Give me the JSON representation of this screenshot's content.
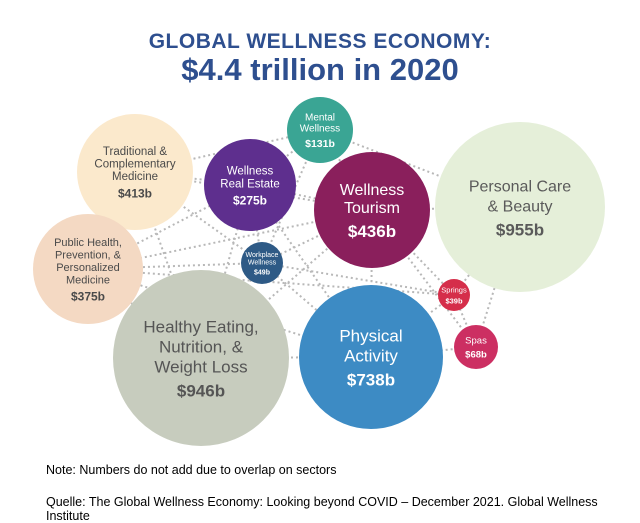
{
  "header": {
    "title": "GLOBAL WELLNESS ECONOMY:",
    "subtitle": "$4.4 trillion in 2020"
  },
  "sectors": [
    {
      "key": "traditional",
      "lines": [
        "Traditional &",
        "Complementary",
        "Medicine"
      ],
      "value": "$413b",
      "color": "#fbe9cc",
      "text_color": "#4a4a4a"
    },
    {
      "key": "mental",
      "lines": [
        "Mental",
        "Wellness"
      ],
      "value": "$131b",
      "color": "#3aa594",
      "text_color": "#ffffff"
    },
    {
      "key": "realestate",
      "lines": [
        "Wellness",
        "Real Estate"
      ],
      "value": "$275b",
      "color": "#5e2f8e",
      "text_color": "#ffffff"
    },
    {
      "key": "tourism",
      "lines": [
        "Wellness",
        "Tourism"
      ],
      "value": "$436b",
      "color": "#8a1f5c",
      "text_color": "#ffffff"
    },
    {
      "key": "personalcare",
      "lines": [
        "Personal Care",
        "& Beauty"
      ],
      "value": "$955b",
      "color": "#e5efd9",
      "text_color": "#5a5a5a"
    },
    {
      "key": "publichealth",
      "lines": [
        "Public Health,",
        "Prevention, &",
        "Personalized",
        "Medicine"
      ],
      "value": "$375b",
      "color": "#f4d9c3",
      "text_color": "#4a4a4a"
    },
    {
      "key": "workplace",
      "lines": [
        "Workplace",
        "Wellness"
      ],
      "value": "$49b",
      "color": "#2e5a86",
      "text_color": "#ffffff"
    },
    {
      "key": "springs",
      "lines": [
        "Springs"
      ],
      "value": "$39b",
      "color": "#d52e4a",
      "text_color": "#ffffff"
    },
    {
      "key": "spas",
      "lines": [
        "Spas"
      ],
      "value": "$68b",
      "color": "#cc2f62",
      "text_color": "#ffffff"
    },
    {
      "key": "healthyeating",
      "lines": [
        "Healthy Eating,",
        "Nutrition, &",
        "Weight Loss"
      ],
      "value": "$946b",
      "color": "#c7ccbe",
      "text_color": "#555555"
    },
    {
      "key": "physical",
      "lines": [
        "Physical",
        "Activity"
      ],
      "value": "$738b",
      "color": "#3d8bc4",
      "text_color": "#ffffff"
    }
  ],
  "notes": {
    "note": "Note: Numbers do not add due to overlap on sectors",
    "source": "Quelle: The Global Wellness Economy: Looking beyond COVID – December 2021. Global Wellness Institute"
  }
}
